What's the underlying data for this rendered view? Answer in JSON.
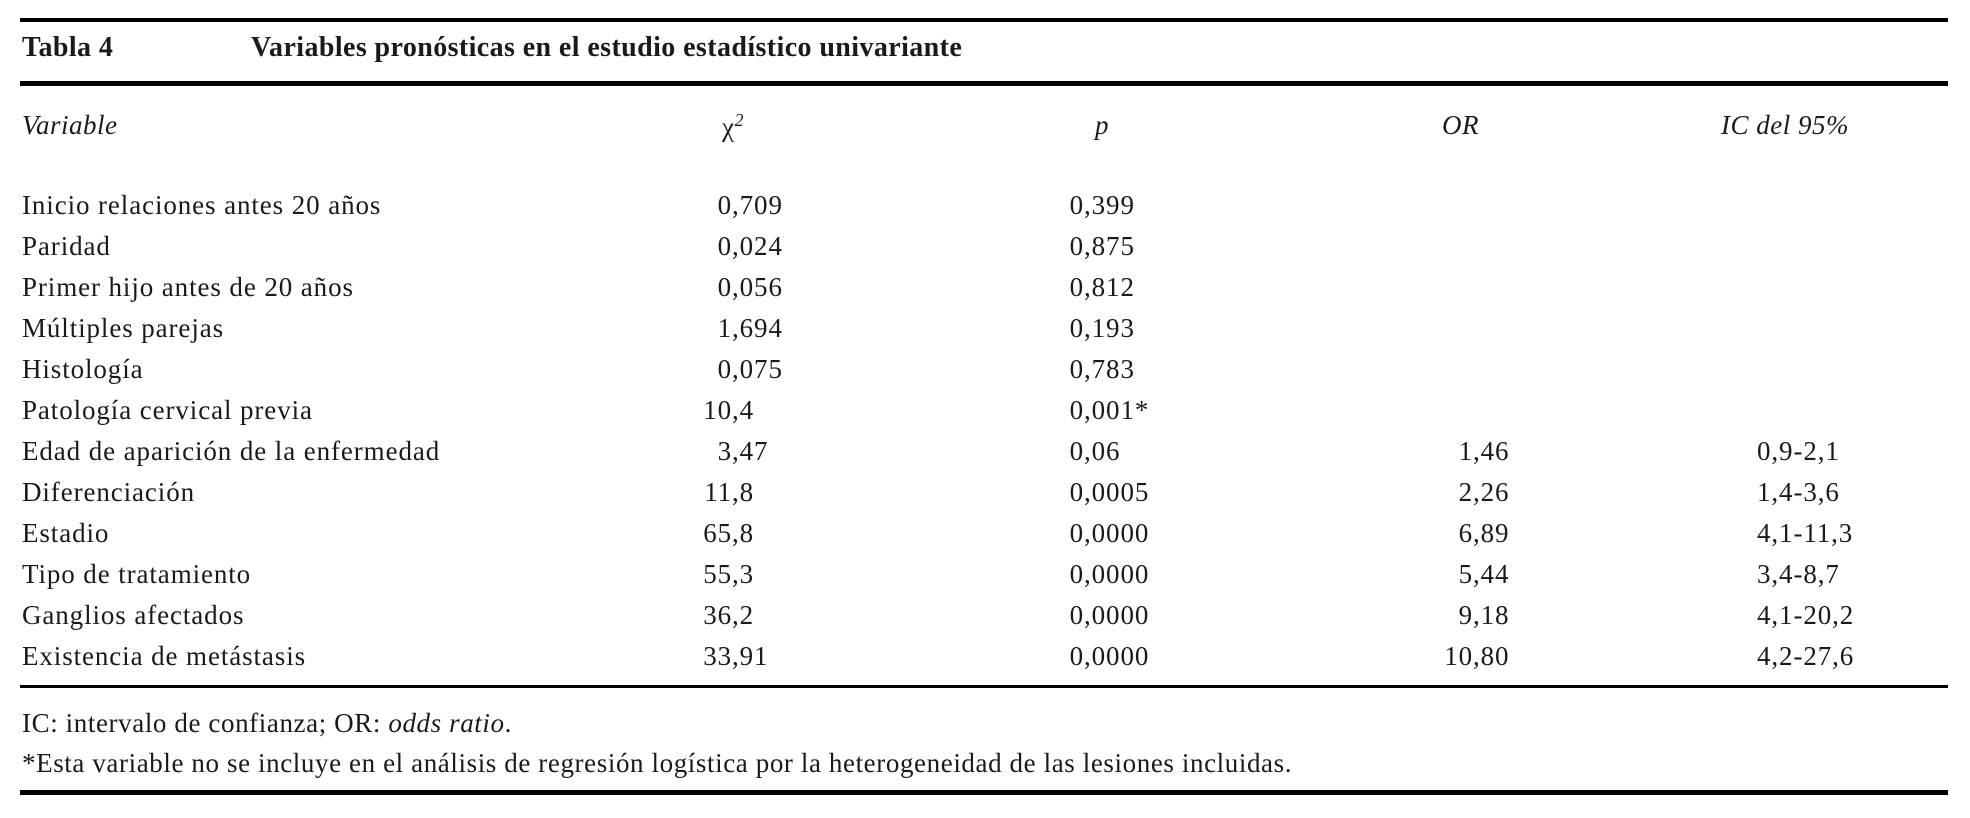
{
  "table": {
    "label": "Tabla 4",
    "title": "Variables pronósticas en el estudio estadístico univariante",
    "headers": {
      "variable": "Variable",
      "chi2_base": "χ",
      "chi2_sup": "2",
      "p": "p",
      "or": "OR",
      "ic": "IC del 95%"
    },
    "rows": [
      {
        "variable": "Inicio relaciones antes 20 años",
        "chi2": "0,709",
        "p": "0,399",
        "or": "",
        "ic": ""
      },
      {
        "variable": "Paridad",
        "chi2": "0,024",
        "p": "0,875",
        "or": "",
        "ic": ""
      },
      {
        "variable": "Primer hijo antes de 20 años",
        "chi2": "0,056",
        "p": "0,812",
        "or": "",
        "ic": ""
      },
      {
        "variable": "Múltiples parejas",
        "chi2": "1,694",
        "p": "0,193",
        "or": "",
        "ic": ""
      },
      {
        "variable": "Histología",
        "chi2": "0,075",
        "p": "0,783",
        "or": "",
        "ic": ""
      },
      {
        "variable": "Patología cervical previa",
        "chi2": "10,4",
        "p": "0,001*",
        "or": "",
        "ic": ""
      },
      {
        "variable": "Edad de aparición de la enfermedad",
        "chi2": "3,47",
        "p": "0,06",
        "or": "1,46",
        "ic": "0,9-2,1"
      },
      {
        "variable": "Diferenciación",
        "chi2": "11,8",
        "p": "0,0005",
        "or": "2,26",
        "ic": "1,4-3,6"
      },
      {
        "variable": "Estadio",
        "chi2": "65,8",
        "p": "0,0000",
        "or": "6,89",
        "ic": "4,1-11,3"
      },
      {
        "variable": "Tipo de tratamiento",
        "chi2": "55,3",
        "p": "0,0000",
        "or": "5,44",
        "ic": "3,4-8,7"
      },
      {
        "variable": "Ganglios afectados",
        "chi2": "36,2",
        "p": "0,0000",
        "or": "9,18",
        "ic": "4,1-20,2"
      },
      {
        "variable": "Existencia de metástasis",
        "chi2": "33,91",
        "p": "0,0000",
        "or": "10,80",
        "ic": "4,2-27,6"
      }
    ],
    "footnotes": {
      "abbrev_prefix": "IC: intervalo de confianza; OR: ",
      "abbrev_italic": "odds ratio",
      "abbrev_suffix": ".",
      "asterisk_note": "*Esta variable no se incluye en el análisis de regresión logística por la heterogeneidad de las lesiones incluidas."
    }
  }
}
